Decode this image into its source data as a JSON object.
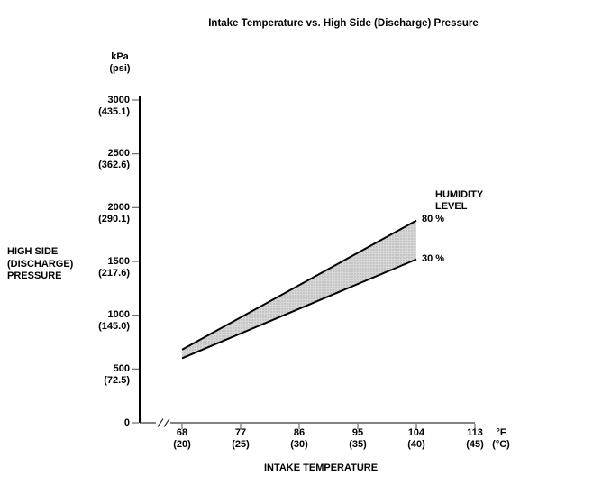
{
  "title": "Intake Temperature vs. High Side (Discharge) Pressure",
  "y_axis": {
    "unit_primary": "kPa",
    "unit_secondary": "(psi)",
    "label_lines": [
      "HIGH SIDE",
      "(DISCHARGE)",
      "PRESSURE"
    ],
    "ticks": [
      {
        "kpa": "3000",
        "psi": "(435.1)",
        "value": 3000
      },
      {
        "kpa": "2500",
        "psi": "(362.6)",
        "value": 2500
      },
      {
        "kpa": "2000",
        "psi": "(290.1)",
        "value": 2000
      },
      {
        "kpa": "1500",
        "psi": "(217.6)",
        "value": 1500
      },
      {
        "kpa": "1000",
        "psi": "(145.0)",
        "value": 1000
      },
      {
        "kpa": "500",
        "psi": "(72.5)",
        "value": 500
      },
      {
        "kpa": "0",
        "psi": "",
        "value": 0
      }
    ]
  },
  "x_axis": {
    "label": "INTAKE TEMPERATURE",
    "unit_primary": "°F",
    "unit_secondary": "(°C)",
    "ticks": [
      {
        "f": "68",
        "c": "(20)",
        "value": 68
      },
      {
        "f": "77",
        "c": "(25)",
        "value": 77
      },
      {
        "f": "86",
        "c": "(30)",
        "value": 86
      },
      {
        "f": "95",
        "c": "(35)",
        "value": 95
      },
      {
        "f": "104",
        "c": "(40)",
        "value": 104
      },
      {
        "f": "113",
        "c": "(45)",
        "value": 113
      }
    ]
  },
  "legend": {
    "title_lines": [
      "HUMIDITY",
      "LEVEL"
    ],
    "upper_label": "80 %",
    "lower_label": "30 %"
  },
  "colors": {
    "background": "#ffffff",
    "text": "#000000",
    "line": "#000000",
    "axis": "#3a3a3a",
    "tick": "#6a6a6a",
    "band_fill": "#d7d7d7",
    "band_dot": "#aaaaaa"
  },
  "chart_data": {
    "type": "area",
    "title": "Intake Temperature vs. High Side (Discharge) Pressure",
    "xlabel": "INTAKE TEMPERATURE",
    "ylabel": "HIGH SIDE (DISCHARGE) PRESSURE",
    "x_unit": "°F",
    "x_unit_secondary": "°C",
    "y_unit": "kPa",
    "y_unit_secondary": "psi",
    "x": [
      68,
      104
    ],
    "x_secondary": [
      20,
      40
    ],
    "series": [
      {
        "name": "80 % humidity level",
        "values": [
          680,
          1880
        ]
      },
      {
        "name": "30 % humidity level",
        "values": [
          600,
          1520
        ]
      }
    ],
    "band_fill_between_series": true,
    "ylim": [
      0,
      3000
    ],
    "xlim": [
      68,
      113
    ],
    "x_axis_break_before_first_tick": true,
    "grid": false,
    "legend_position": "at-right-ends-of-lines"
  }
}
